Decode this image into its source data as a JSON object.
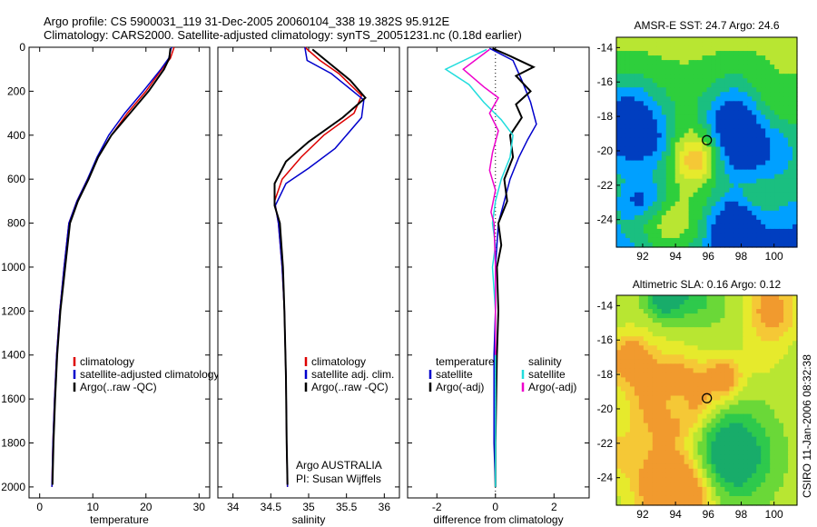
{
  "header": {
    "line1": "Argo profile: CS 5900031_119 31-Dec-2005 20060104_338 19.382S 95.912E",
    "line2": "Climatology: CARS2000. Satellite-adjusted climatology: synTS_20051231.nc (0.18d earlier)"
  },
  "side_label": "CSIRO 11-Jan-2006 08:32:38",
  "colors": {
    "clim": "#dd0000",
    "sat": "#0000cc",
    "argo": "#000000",
    "sat_cyan": "#22dddd",
    "argo_mag": "#ee00cc"
  },
  "chart_data": [
    {
      "type": "line",
      "panel": "temperature",
      "xlabel": "temperature",
      "xlim": [
        -2,
        32
      ],
      "xticks": [
        0,
        10,
        20,
        30
      ],
      "ylim": [
        2050,
        0
      ],
      "yticks": [
        0,
        200,
        400,
        600,
        800,
        1000,
        1200,
        1400,
        1600,
        1800,
        2000
      ],
      "legend": [
        "climatology",
        "satellite-adjusted climatology",
        "Argo(..raw -QC)"
      ],
      "series": [
        {
          "name": "climatology",
          "color": "clim",
          "x": [
            25.3,
            24.6,
            23.0,
            20.0,
            16.5,
            13.5,
            11.0,
            9.0,
            7.0,
            5.5,
            4.6,
            3.8,
            3.2,
            2.8,
            2.5,
            2.3
          ],
          "y": [
            0,
            50,
            100,
            200,
            300,
            400,
            500,
            600,
            700,
            800,
            1000,
            1200,
            1400,
            1600,
            1800,
            2000
          ]
        },
        {
          "name": "satellite-adjusted climatology",
          "color": "sat",
          "x": [
            24.8,
            24.3,
            22.8,
            19.5,
            16.0,
            13.0,
            10.8,
            9.0,
            7.0,
            5.5,
            4.6,
            3.8,
            3.2,
            2.8,
            2.5,
            2.3
          ],
          "y": [
            0,
            50,
            100,
            200,
            300,
            400,
            500,
            600,
            700,
            800,
            1000,
            1200,
            1400,
            1600,
            1800,
            2000
          ]
        },
        {
          "name": "Argo(..raw -QC)",
          "color": "argo",
          "x": [
            24.6,
            24.4,
            23.4,
            20.5,
            17.0,
            13.5,
            11.0,
            9.2,
            7.2,
            5.7,
            4.8,
            3.9,
            3.3,
            2.9,
            2.6,
            2.4
          ],
          "y": [
            5,
            50,
            100,
            200,
            300,
            400,
            500,
            600,
            700,
            800,
            1000,
            1200,
            1400,
            1600,
            1800,
            1990
          ]
        }
      ]
    },
    {
      "type": "line",
      "panel": "salinity",
      "xlabel": "salinity",
      "xlim": [
        33.8,
        36.2
      ],
      "xticks": [
        34,
        34.5,
        35,
        35.5,
        36
      ],
      "ylim": [
        2050,
        0
      ],
      "legend": [
        "climatology",
        "satellite adj. clim.",
        "Argo(..raw -QC)"
      ],
      "annotation": [
        "Argo AUSTRALIA",
        "PI: Susan Wijffels"
      ],
      "series": [
        {
          "name": "climatology",
          "color": "clim",
          "x": [
            34.95,
            35.15,
            35.4,
            35.7,
            35.6,
            35.2,
            34.9,
            34.65,
            34.55,
            34.6,
            34.65,
            34.68,
            34.7,
            34.71,
            34.72
          ],
          "y": [
            0,
            60,
            120,
            220,
            300,
            400,
            500,
            600,
            700,
            800,
            1000,
            1200,
            1500,
            1800,
            2000
          ]
        },
        {
          "name": "satellite adj. clim.",
          "color": "sat",
          "x": [
            34.95,
            34.98,
            35.3,
            35.73,
            35.7,
            35.35,
            35.0,
            34.7,
            34.56,
            34.6,
            34.65,
            34.68,
            34.7,
            34.71,
            34.72
          ],
          "y": [
            0,
            60,
            120,
            240,
            320,
            460,
            550,
            620,
            720,
            800,
            1000,
            1200,
            1500,
            1800,
            2000
          ]
        },
        {
          "name": "Argo(..raw -QC)",
          "color": "argo",
          "x": [
            35.05,
            35.3,
            35.55,
            35.75,
            35.45,
            35.0,
            34.7,
            34.55,
            34.55,
            34.62,
            34.66,
            34.68,
            34.7,
            34.71,
            34.72
          ],
          "y": [
            10,
            80,
            150,
            230,
            320,
            430,
            520,
            620,
            720,
            800,
            1000,
            1200,
            1500,
            1800,
            1990
          ]
        }
      ]
    },
    {
      "type": "line",
      "panel": "difference",
      "xlabel": "difference from climatology",
      "xlim": [
        -3,
        3.2
      ],
      "xticks": [
        -2,
        0,
        2
      ],
      "ylim": [
        2050,
        0
      ],
      "legend_temperature": [
        "temperature",
        "satellite",
        "Argo(-adj)"
      ],
      "legend_salinity": [
        "salinity",
        "satellite",
        "Argo(-adj)"
      ],
      "series": [
        {
          "name": "temperature satellite",
          "color": "sat",
          "x": [
            -0.2,
            0.6,
            0.9,
            1.2,
            1.4,
            1.1,
            0.8,
            0.5,
            0.3,
            0.1,
            0.0,
            0.0,
            -0.05,
            -0.05,
            -0.05,
            0.0
          ],
          "y": [
            5,
            60,
            150,
            250,
            350,
            420,
            500,
            600,
            700,
            800,
            1000,
            1200,
            1400,
            1600,
            1800,
            2000
          ]
        },
        {
          "name": "temperature Argo(-adj)",
          "color": "argo",
          "x": [
            -0.1,
            0.5,
            1.3,
            0.7,
            1.2,
            0.7,
            0.9,
            0.5,
            0.6,
            0.3,
            0.4,
            0.1,
            0.2,
            0.05,
            0.1,
            0.05,
            0.0,
            0.0
          ],
          "y": [
            5,
            40,
            90,
            130,
            200,
            260,
            320,
            400,
            500,
            600,
            700,
            800,
            900,
            1000,
            1200,
            1400,
            1800,
            2000
          ]
        },
        {
          "name": "salinity satellite",
          "color": "sat_cyan",
          "x": [
            -0.3,
            -1.7,
            -0.9,
            -0.4,
            0.2,
            0.6,
            0.5,
            0.2,
            0.0,
            -0.1,
            0.0,
            -0.1,
            0.0,
            0.0,
            0.0
          ],
          "y": [
            10,
            100,
            170,
            250,
            330,
            400,
            500,
            600,
            700,
            800,
            900,
            1000,
            1200,
            1600,
            2000
          ]
        },
        {
          "name": "salinity Argo(-adj)",
          "color": "argo_mag",
          "x": [
            -0.2,
            -1.1,
            -0.4,
            0.1,
            -0.2,
            0.1,
            -0.1,
            -0.2,
            0.0,
            -0.15,
            -0.05,
            0.0,
            0.0
          ],
          "y": [
            10,
            100,
            180,
            230,
            300,
            380,
            480,
            560,
            650,
            750,
            800,
            1000,
            1400
          ]
        }
      ]
    }
  ],
  "maps": [
    {
      "title": "AMSR-E SST: 24.7  Argo: 24.6",
      "xticks": [
        92,
        94,
        96,
        98,
        100
      ],
      "yticks": [
        -14,
        -16,
        -18,
        -20,
        -22,
        -24
      ],
      "xlim": [
        90.4,
        101.4
      ],
      "ylim": [
        -25.6,
        -13.4
      ],
      "marker": {
        "lon": 95.91,
        "lat": -19.38
      },
      "palette": [
        "#003ec0",
        "#00a0ff",
        "#1abf80",
        "#2ecf3c",
        "#b8e632",
        "#e6ea2c",
        "#f5c836"
      ],
      "seed": 11,
      "bias": 0.45,
      "gradient": -0.35
    },
    {
      "title": "Altimetric SLA: 0.16  Argo: 0.12",
      "xticks": [
        92,
        94,
        96,
        98,
        100
      ],
      "yticks": [
        -14,
        -16,
        -18,
        -20,
        -22,
        -24
      ],
      "xlim": [
        90.4,
        101.4
      ],
      "ylim": [
        -25.6,
        -13.4
      ],
      "marker": {
        "lon": 95.91,
        "lat": -19.38
      },
      "palette": [
        "#18ac6a",
        "#2ec94c",
        "#6ad838",
        "#b8e632",
        "#e6ea2c",
        "#f5c836",
        "#f19a2e"
      ],
      "seed": 29,
      "bias": 0.5,
      "gradient": 0.0
    }
  ]
}
